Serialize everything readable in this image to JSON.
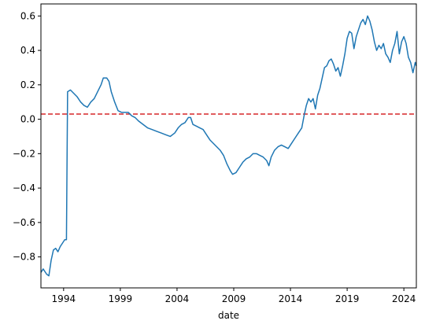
{
  "chart_data": {
    "type": "line",
    "xlabel": "date",
    "ylabel": "",
    "title": "",
    "xlim": [
      1992.0,
      2025.1
    ],
    "ylim": [
      -0.98,
      0.67
    ],
    "x_ticks": [
      1994,
      1999,
      2004,
      2009,
      2014,
      2019,
      2024
    ],
    "y_ticks": [
      -0.8,
      -0.6,
      -0.4,
      -0.2,
      0.0,
      0.2,
      0.4,
      0.6
    ],
    "y_tick_labels": [
      "−0.8",
      "−0.6",
      "−0.4",
      "−0.2",
      "0.0",
      "0.2",
      "0.4",
      "0.6"
    ],
    "grid": false,
    "line_color": "#1f77b4",
    "reference_line": {
      "y": 0.03,
      "color": "#d62728",
      "style": "dashed"
    },
    "series": [
      {
        "color": "#1f77b4",
        "points": [
          [
            1992.0,
            -0.89
          ],
          [
            1992.2,
            -0.87
          ],
          [
            1992.5,
            -0.9
          ],
          [
            1992.7,
            -0.91
          ],
          [
            1992.9,
            -0.82
          ],
          [
            1993.1,
            -0.76
          ],
          [
            1993.3,
            -0.75
          ],
          [
            1993.5,
            -0.77
          ],
          [
            1993.7,
            -0.74
          ],
          [
            1993.9,
            -0.72
          ],
          [
            1994.1,
            -0.7
          ],
          [
            1994.25,
            -0.7
          ],
          [
            1994.35,
            0.16
          ],
          [
            1994.6,
            0.17
          ],
          [
            1994.9,
            0.15
          ],
          [
            1995.2,
            0.13
          ],
          [
            1995.5,
            0.1
          ],
          [
            1995.8,
            0.08
          ],
          [
            1996.1,
            0.07
          ],
          [
            1996.4,
            0.1
          ],
          [
            1996.7,
            0.12
          ],
          [
            1997.0,
            0.16
          ],
          [
            1997.3,
            0.2
          ],
          [
            1997.5,
            0.24
          ],
          [
            1997.8,
            0.24
          ],
          [
            1998.0,
            0.22
          ],
          [
            1998.2,
            0.16
          ],
          [
            1998.5,
            0.1
          ],
          [
            1998.8,
            0.05
          ],
          [
            1999.1,
            0.04
          ],
          [
            1999.4,
            0.04
          ],
          [
            1999.7,
            0.04
          ],
          [
            2000.0,
            0.02
          ],
          [
            2000.3,
            0.01
          ],
          [
            2000.6,
            -0.01
          ],
          [
            2001.0,
            -0.03
          ],
          [
            2001.4,
            -0.05
          ],
          [
            2001.8,
            -0.06
          ],
          [
            2002.2,
            -0.07
          ],
          [
            2002.6,
            -0.08
          ],
          [
            2003.0,
            -0.09
          ],
          [
            2003.4,
            -0.1
          ],
          [
            2003.8,
            -0.08
          ],
          [
            2004.1,
            -0.05
          ],
          [
            2004.4,
            -0.03
          ],
          [
            2004.7,
            -0.02
          ],
          [
            2005.0,
            0.01
          ],
          [
            2005.2,
            0.01
          ],
          [
            2005.4,
            -0.03
          ],
          [
            2005.7,
            -0.04
          ],
          [
            2006.0,
            -0.05
          ],
          [
            2006.3,
            -0.06
          ],
          [
            2006.6,
            -0.09
          ],
          [
            2006.9,
            -0.12
          ],
          [
            2007.2,
            -0.14
          ],
          [
            2007.5,
            -0.16
          ],
          [
            2007.8,
            -0.18
          ],
          [
            2008.1,
            -0.21
          ],
          [
            2008.4,
            -0.26
          ],
          [
            2008.7,
            -0.3
          ],
          [
            2008.9,
            -0.32
          ],
          [
            2009.2,
            -0.31
          ],
          [
            2009.5,
            -0.28
          ],
          [
            2009.8,
            -0.25
          ],
          [
            2010.1,
            -0.23
          ],
          [
            2010.4,
            -0.22
          ],
          [
            2010.7,
            -0.2
          ],
          [
            2011.0,
            -0.2
          ],
          [
            2011.3,
            -0.21
          ],
          [
            2011.6,
            -0.22
          ],
          [
            2011.9,
            -0.24
          ],
          [
            2012.1,
            -0.27
          ],
          [
            2012.3,
            -0.22
          ],
          [
            2012.6,
            -0.18
          ],
          [
            2012.9,
            -0.16
          ],
          [
            2013.2,
            -0.15
          ],
          [
            2013.5,
            -0.16
          ],
          [
            2013.8,
            -0.17
          ],
          [
            2014.1,
            -0.14
          ],
          [
            2014.4,
            -0.11
          ],
          [
            2014.7,
            -0.08
          ],
          [
            2015.0,
            -0.05
          ],
          [
            2015.2,
            0.02
          ],
          [
            2015.4,
            0.08
          ],
          [
            2015.6,
            0.12
          ],
          [
            2015.8,
            0.1
          ],
          [
            2016.0,
            0.12
          ],
          [
            2016.2,
            0.06
          ],
          [
            2016.4,
            0.14
          ],
          [
            2016.6,
            0.18
          ],
          [
            2016.8,
            0.24
          ],
          [
            2017.0,
            0.3
          ],
          [
            2017.2,
            0.31
          ],
          [
            2017.4,
            0.34
          ],
          [
            2017.6,
            0.35
          ],
          [
            2017.8,
            0.32
          ],
          [
            2018.0,
            0.28
          ],
          [
            2018.2,
            0.3
          ],
          [
            2018.4,
            0.25
          ],
          [
            2018.6,
            0.31
          ],
          [
            2018.8,
            0.38
          ],
          [
            2019.0,
            0.47
          ],
          [
            2019.2,
            0.51
          ],
          [
            2019.4,
            0.5
          ],
          [
            2019.6,
            0.41
          ],
          [
            2019.8,
            0.48
          ],
          [
            2020.0,
            0.52
          ],
          [
            2020.2,
            0.56
          ],
          [
            2020.4,
            0.58
          ],
          [
            2020.6,
            0.55
          ],
          [
            2020.8,
            0.6
          ],
          [
            2021.0,
            0.57
          ],
          [
            2021.2,
            0.52
          ],
          [
            2021.4,
            0.45
          ],
          [
            2021.6,
            0.4
          ],
          [
            2021.8,
            0.43
          ],
          [
            2022.0,
            0.41
          ],
          [
            2022.2,
            0.44
          ],
          [
            2022.4,
            0.38
          ],
          [
            2022.6,
            0.36
          ],
          [
            2022.8,
            0.33
          ],
          [
            2023.0,
            0.4
          ],
          [
            2023.2,
            0.44
          ],
          [
            2023.4,
            0.51
          ],
          [
            2023.6,
            0.38
          ],
          [
            2023.8,
            0.45
          ],
          [
            2024.0,
            0.48
          ],
          [
            2024.2,
            0.44
          ],
          [
            2024.4,
            0.36
          ],
          [
            2024.6,
            0.33
          ],
          [
            2024.8,
            0.27
          ],
          [
            2025.0,
            0.33
          ],
          [
            2025.1,
            0.31
          ]
        ]
      }
    ]
  }
}
